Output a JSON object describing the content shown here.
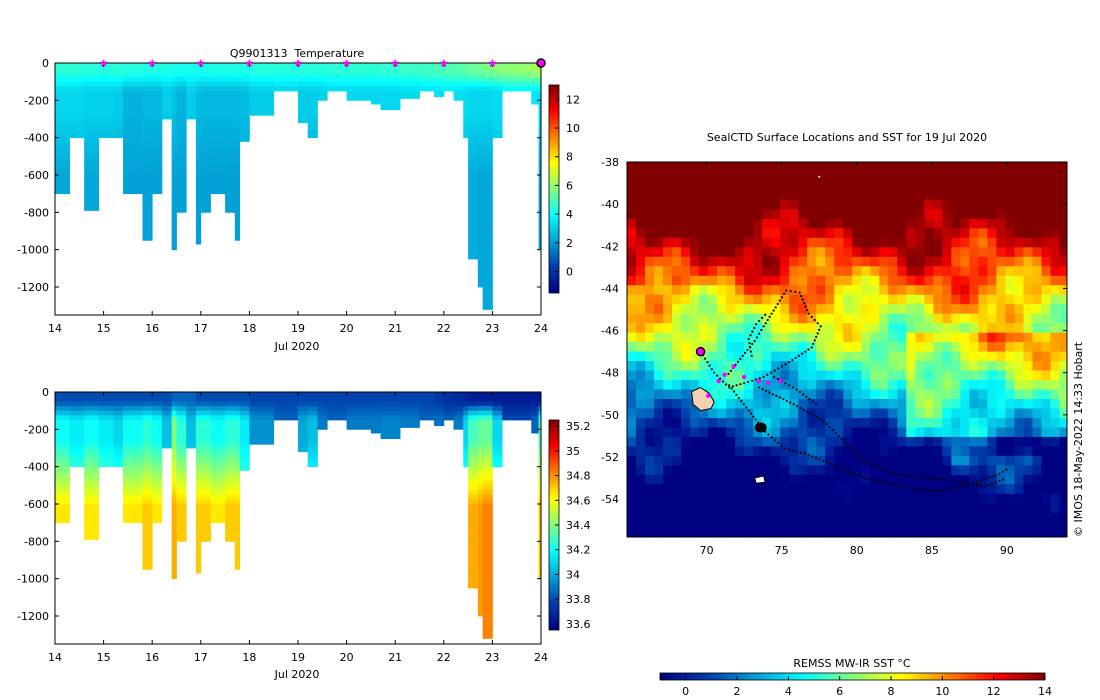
{
  "chart_data": [
    {
      "type": "heatmap",
      "id": "temperature-section",
      "title": "Q9901313  Temperature",
      "xlabel": "Jul 2020",
      "xlim": [
        14,
        24
      ],
      "x_ticks": [
        14,
        15,
        16,
        17,
        18,
        19,
        20,
        21,
        22,
        23,
        24
      ],
      "ylim": [
        -1350,
        0
      ],
      "y_ticks": [
        0,
        -200,
        -400,
        -600,
        -800,
        -1000,
        -1200
      ],
      "colorbar": {
        "range": [
          -1.5,
          13
        ],
        "ticks": [
          0,
          2,
          4,
          6,
          8,
          10,
          12
        ]
      },
      "markers": [
        15,
        16,
        17,
        18,
        19,
        20,
        21,
        22,
        23
      ],
      "end_marker": 24,
      "profiles": [
        {
          "x0": 14.0,
          "x1": 14.3,
          "depth": 700,
          "surf": 4.5,
          "mid": 3.2,
          "deep": 2.3
        },
        {
          "x0": 14.3,
          "x1": 14.6,
          "depth": 400,
          "surf": 4.5,
          "mid": 3.2,
          "deep": 2.3
        },
        {
          "x0": 14.6,
          "x1": 14.9,
          "depth": 790,
          "surf": 4.4,
          "mid": 3.1,
          "deep": 2.3
        },
        {
          "x0": 14.9,
          "x1": 15.2,
          "depth": 400,
          "surf": 4.4,
          "mid": 3.1,
          "deep": 2.3
        },
        {
          "x0": 15.2,
          "x1": 15.4,
          "depth": 400,
          "surf": 4.5,
          "mid": 3.0,
          "deep": 2.2
        },
        {
          "x0": 15.4,
          "x1": 15.8,
          "depth": 700,
          "surf": 4.4,
          "mid": 2.5,
          "deep": 2.2
        },
        {
          "x0": 15.8,
          "x1": 16.0,
          "depth": 950,
          "surf": 4.3,
          "mid": 2.6,
          "deep": 2.2
        },
        {
          "x0": 16.0,
          "x1": 16.2,
          "depth": 700,
          "surf": 4.3,
          "mid": 2.6,
          "deep": 2.2
        },
        {
          "x0": 16.2,
          "x1": 16.4,
          "depth": 300,
          "surf": 4.3,
          "mid": 3.0,
          "deep": 2.3
        },
        {
          "x0": 16.4,
          "x1": 16.5,
          "depth": 1000,
          "surf": 4.2,
          "mid": 2.8,
          "deep": 2.2
        },
        {
          "x0": 16.5,
          "x1": 16.7,
          "depth": 800,
          "surf": 4.2,
          "mid": 2.5,
          "deep": 2.2
        },
        {
          "x0": 16.7,
          "x1": 16.9,
          "depth": 300,
          "surf": 4.2,
          "mid": 3.0,
          "deep": 2.3
        },
        {
          "x0": 16.9,
          "x1": 17.0,
          "depth": 970,
          "surf": 4.2,
          "mid": 2.7,
          "deep": 2.2
        },
        {
          "x0": 17.0,
          "x1": 17.2,
          "depth": 800,
          "surf": 4.2,
          "mid": 2.6,
          "deep": 2.2
        },
        {
          "x0": 17.2,
          "x1": 17.5,
          "depth": 700,
          "surf": 4.3,
          "mid": 2.6,
          "deep": 2.2
        },
        {
          "x0": 17.5,
          "x1": 17.7,
          "depth": 800,
          "surf": 4.3,
          "mid": 2.6,
          "deep": 2.2
        },
        {
          "x0": 17.7,
          "x1": 17.8,
          "depth": 950,
          "surf": 4.3,
          "mid": 2.6,
          "deep": 2.2
        },
        {
          "x0": 17.8,
          "x1": 18.0,
          "depth": 420,
          "surf": 4.3,
          "mid": 2.7,
          "deep": 2.3
        },
        {
          "x0": 18.0,
          "x1": 18.5,
          "depth": 280,
          "surf": 4.4,
          "mid": 3.0,
          "deep": 2.4
        },
        {
          "x0": 18.5,
          "x1": 19.0,
          "depth": 150,
          "surf": 4.4,
          "mid": 3.1,
          "deep": 2.6
        },
        {
          "x0": 19.0,
          "x1": 19.2,
          "depth": 320,
          "surf": 4.4,
          "mid": 3.0,
          "deep": 2.5
        },
        {
          "x0": 19.2,
          "x1": 19.4,
          "depth": 400,
          "surf": 4.4,
          "mid": 3.0,
          "deep": 2.4
        },
        {
          "x0": 19.4,
          "x1": 19.6,
          "depth": 200,
          "surf": 4.4,
          "mid": 3.1,
          "deep": 2.6
        },
        {
          "x0": 19.6,
          "x1": 20.0,
          "depth": 150,
          "surf": 4.5,
          "mid": 3.2,
          "deep": 2.7
        },
        {
          "x0": 20.0,
          "x1": 20.5,
          "depth": 200,
          "surf": 4.5,
          "mid": 3.2,
          "deep": 2.7
        },
        {
          "x0": 20.5,
          "x1": 20.7,
          "depth": 220,
          "surf": 4.5,
          "mid": 3.2,
          "deep": 2.7
        },
        {
          "x0": 20.7,
          "x1": 21.1,
          "depth": 250,
          "surf": 4.6,
          "mid": 3.2,
          "deep": 2.7
        },
        {
          "x0": 21.1,
          "x1": 21.5,
          "depth": 190,
          "surf": 4.7,
          "mid": 3.3,
          "deep": 2.8
        },
        {
          "x0": 21.5,
          "x1": 21.8,
          "depth": 150,
          "surf": 4.8,
          "mid": 3.4,
          "deep": 2.8
        },
        {
          "x0": 21.8,
          "x1": 22.0,
          "depth": 180,
          "surf": 4.9,
          "mid": 3.4,
          "deep": 2.8
        },
        {
          "x0": 22.0,
          "x1": 22.2,
          "depth": 150,
          "surf": 5.0,
          "mid": 3.5,
          "deep": 2.8
        },
        {
          "x0": 22.2,
          "x1": 22.4,
          "depth": 200,
          "surf": 5.1,
          "mid": 3.4,
          "deep": 2.6
        },
        {
          "x0": 22.4,
          "x1": 22.5,
          "depth": 400,
          "surf": 5.2,
          "mid": 3.3,
          "deep": 2.5
        },
        {
          "x0": 22.5,
          "x1": 22.7,
          "depth": 1050,
          "surf": 5.4,
          "mid": 3.2,
          "deep": 2.4
        },
        {
          "x0": 22.7,
          "x1": 22.8,
          "depth": 1200,
          "surf": 5.5,
          "mid": 3.2,
          "deep": 2.3
        },
        {
          "x0": 22.8,
          "x1": 23.0,
          "depth": 1320,
          "surf": 5.6,
          "mid": 3.2,
          "deep": 2.3
        },
        {
          "x0": 23.0,
          "x1": 23.2,
          "depth": 400,
          "surf": 5.8,
          "mid": 3.3,
          "deep": 2.6
        },
        {
          "x0": 23.2,
          "x1": 23.5,
          "depth": 150,
          "surf": 5.9,
          "mid": 3.6,
          "deep": 2.8
        },
        {
          "x0": 23.5,
          "x1": 23.8,
          "depth": 150,
          "surf": 6.0,
          "mid": 3.6,
          "deep": 2.8
        },
        {
          "x0": 23.8,
          "x1": 23.95,
          "depth": 220,
          "surf": 6.2,
          "mid": 3.5,
          "deep": 2.7
        },
        {
          "x0": 23.95,
          "x1": 24.05,
          "depth": 1000,
          "surf": 6.5,
          "mid": 3.4,
          "deep": 2.4
        }
      ]
    },
    {
      "type": "heatmap",
      "id": "salinity-section",
      "title": "",
      "xlabel": "Jul 2020",
      "xlim": [
        14,
        24
      ],
      "x_ticks": [
        14,
        15,
        16,
        17,
        18,
        19,
        20,
        21,
        22,
        23,
        24
      ],
      "ylim": [
        -1350,
        0
      ],
      "y_ticks": [
        0,
        -200,
        -400,
        -600,
        -800,
        -1000,
        -1200
      ],
      "colorbar": {
        "range": [
          33.55,
          35.25
        ],
        "ticks": [
          33.6,
          33.8,
          34,
          34.2,
          34.4,
          34.6,
          34.8,
          35,
          35.2
        ],
        "tick_labels": [
          "33.6",
          "33.8",
          "34",
          "34.2",
          "34.4",
          "34.6",
          "34.8",
          "35",
          "35.2"
        ]
      },
      "profiles": [
        {
          "x0": 14.0,
          "x1": 14.3,
          "depth": 700,
          "surf": 33.8,
          "mid": 34.2,
          "deep": 34.65
        },
        {
          "x0": 14.3,
          "x1": 14.6,
          "depth": 400,
          "surf": 33.8,
          "mid": 34.15,
          "deep": 34.4
        },
        {
          "x0": 14.6,
          "x1": 14.9,
          "depth": 790,
          "surf": 33.8,
          "mid": 34.2,
          "deep": 34.65
        },
        {
          "x0": 14.9,
          "x1": 15.2,
          "depth": 400,
          "surf": 33.8,
          "mid": 34.15,
          "deep": 34.4
        },
        {
          "x0": 15.2,
          "x1": 15.4,
          "depth": 400,
          "surf": 33.8,
          "mid": 34.1,
          "deep": 34.4
        },
        {
          "x0": 15.4,
          "x1": 15.8,
          "depth": 700,
          "surf": 33.8,
          "mid": 34.2,
          "deep": 34.65
        },
        {
          "x0": 15.8,
          "x1": 16.0,
          "depth": 950,
          "surf": 33.8,
          "mid": 34.25,
          "deep": 34.7
        },
        {
          "x0": 16.0,
          "x1": 16.2,
          "depth": 700,
          "surf": 33.8,
          "mid": 34.2,
          "deep": 34.65
        },
        {
          "x0": 16.2,
          "x1": 16.4,
          "depth": 300,
          "surf": 33.8,
          "mid": 34.05,
          "deep": 34.25
        },
        {
          "x0": 16.4,
          "x1": 16.5,
          "depth": 1000,
          "surf": 33.85,
          "mid": 34.4,
          "deep": 34.75
        },
        {
          "x0": 16.5,
          "x1": 16.7,
          "depth": 800,
          "surf": 33.85,
          "mid": 34.25,
          "deep": 34.7
        },
        {
          "x0": 16.7,
          "x1": 16.9,
          "depth": 300,
          "surf": 33.85,
          "mid": 34.05,
          "deep": 34.25
        },
        {
          "x0": 16.9,
          "x1": 17.0,
          "depth": 970,
          "surf": 33.8,
          "mid": 34.25,
          "deep": 34.7
        },
        {
          "x0": 17.0,
          "x1": 17.2,
          "depth": 800,
          "surf": 33.8,
          "mid": 34.25,
          "deep": 34.7
        },
        {
          "x0": 17.2,
          "x1": 17.5,
          "depth": 700,
          "surf": 33.8,
          "mid": 34.2,
          "deep": 34.65
        },
        {
          "x0": 17.5,
          "x1": 17.7,
          "depth": 800,
          "surf": 33.8,
          "mid": 34.25,
          "deep": 34.7
        },
        {
          "x0": 17.7,
          "x1": 17.8,
          "depth": 950,
          "surf": 33.8,
          "mid": 34.25,
          "deep": 34.7
        },
        {
          "x0": 17.8,
          "x1": 18.0,
          "depth": 420,
          "surf": 33.8,
          "mid": 34.15,
          "deep": 34.35
        },
        {
          "x0": 18.0,
          "x1": 18.5,
          "depth": 280,
          "surf": 33.78,
          "mid": 33.95,
          "deep": 34.05
        },
        {
          "x0": 18.5,
          "x1": 19.0,
          "depth": 150,
          "surf": 33.78,
          "mid": 33.85,
          "deep": 33.9
        },
        {
          "x0": 19.0,
          "x1": 19.2,
          "depth": 320,
          "surf": 33.78,
          "mid": 34.0,
          "deep": 34.15
        },
        {
          "x0": 19.2,
          "x1": 19.4,
          "depth": 400,
          "surf": 33.78,
          "mid": 34.05,
          "deep": 34.3
        },
        {
          "x0": 19.4,
          "x1": 19.6,
          "depth": 200,
          "surf": 33.78,
          "mid": 33.9,
          "deep": 33.98
        },
        {
          "x0": 19.6,
          "x1": 20.0,
          "depth": 150,
          "surf": 33.78,
          "mid": 33.85,
          "deep": 33.92
        },
        {
          "x0": 20.0,
          "x1": 20.5,
          "depth": 200,
          "surf": 33.78,
          "mid": 33.9,
          "deep": 33.98
        },
        {
          "x0": 20.5,
          "x1": 20.7,
          "depth": 220,
          "surf": 33.78,
          "mid": 33.9,
          "deep": 33.98
        },
        {
          "x0": 20.7,
          "x1": 21.1,
          "depth": 250,
          "surf": 33.78,
          "mid": 33.92,
          "deep": 34.0
        },
        {
          "x0": 21.1,
          "x1": 21.5,
          "depth": 190,
          "surf": 33.78,
          "mid": 33.9,
          "deep": 33.98
        },
        {
          "x0": 21.5,
          "x1": 21.8,
          "depth": 150,
          "surf": 33.78,
          "mid": 33.85,
          "deep": 33.92
        },
        {
          "x0": 21.8,
          "x1": 22.0,
          "depth": 180,
          "surf": 33.75,
          "mid": 33.88,
          "deep": 33.95
        },
        {
          "x0": 22.0,
          "x1": 22.2,
          "depth": 150,
          "surf": 33.72,
          "mid": 33.85,
          "deep": 33.92
        },
        {
          "x0": 22.2,
          "x1": 22.4,
          "depth": 200,
          "surf": 33.7,
          "mid": 33.9,
          "deep": 34.0
        },
        {
          "x0": 22.4,
          "x1": 22.5,
          "depth": 400,
          "surf": 33.68,
          "mid": 34.1,
          "deep": 34.35
        },
        {
          "x0": 22.5,
          "x1": 22.7,
          "depth": 1050,
          "surf": 33.65,
          "mid": 34.3,
          "deep": 34.75
        },
        {
          "x0": 22.7,
          "x1": 22.8,
          "depth": 1200,
          "surf": 33.65,
          "mid": 34.35,
          "deep": 34.78
        },
        {
          "x0": 22.8,
          "x1": 23.0,
          "depth": 1320,
          "surf": 33.65,
          "mid": 34.35,
          "deep": 34.82
        },
        {
          "x0": 23.0,
          "x1": 23.2,
          "depth": 400,
          "surf": 33.65,
          "mid": 34.1,
          "deep": 34.35
        },
        {
          "x0": 23.2,
          "x1": 23.5,
          "depth": 150,
          "surf": 33.65,
          "mid": 33.8,
          "deep": 33.9
        },
        {
          "x0": 23.5,
          "x1": 23.8,
          "depth": 150,
          "surf": 33.65,
          "mid": 33.8,
          "deep": 33.9
        },
        {
          "x0": 23.8,
          "x1": 23.95,
          "depth": 220,
          "surf": 33.65,
          "mid": 33.85,
          "deep": 33.95
        },
        {
          "x0": 23.95,
          "x1": 24.05,
          "depth": 1000,
          "surf": 33.65,
          "mid": 34.3,
          "deep": 34.7
        }
      ]
    },
    {
      "type": "heatmap",
      "id": "sst-map",
      "title": "SealCTD Surface Locations and SST for 19 Jul 2020",
      "xlim": [
        64.7,
        94
      ],
      "ylim": [
        -55.8,
        -38
      ],
      "x_ticks": [
        70,
        75,
        80,
        85,
        90
      ],
      "y_ticks": [
        -38,
        -40,
        -42,
        -44,
        -46,
        -48,
        -50,
        -52,
        -54
      ],
      "colorbar": {
        "label": "REMSS MW-IR SST °C",
        "range": [
          -1,
          14
        ],
        "ticks": [
          0,
          2,
          4,
          6,
          8,
          10,
          12,
          14
        ]
      },
      "credit": "© IMOS 18-May-2022 14:33 Hobart",
      "latest_position": [
        69.6,
        -47.0
      ],
      "surface_positions": [
        [
          70.1,
          -49.1
        ],
        [
          70.8,
          -48.4
        ],
        [
          71.2,
          -48.1
        ],
        [
          71.8,
          -47.7
        ],
        [
          72.5,
          -48.2
        ],
        [
          73.5,
          -48.4
        ],
        [
          74.1,
          -48.5
        ],
        [
          74.9,
          -48.4
        ]
      ],
      "track_segments": [
        [
          [
            69.6,
            -47.0
          ],
          [
            70.5,
            -48.0
          ],
          [
            71.5,
            -48.7
          ],
          [
            72.5,
            -48.5
          ],
          [
            73.8,
            -48.2
          ],
          [
            75.5,
            -47.5
          ],
          [
            77.0,
            -46.8
          ],
          [
            77.6,
            -45.8
          ],
          [
            76.8,
            -45.2
          ],
          [
            76.2,
            -44.2
          ],
          [
            75.3,
            -44.1
          ],
          [
            74.6,
            -44.9
          ],
          [
            73.8,
            -45.8
          ],
          [
            73.2,
            -46.5
          ],
          [
            72.4,
            -47.2
          ],
          [
            71.3,
            -48.2
          ]
        ],
        [
          [
            71.5,
            -48.6
          ],
          [
            72.8,
            -49.8
          ],
          [
            73.9,
            -50.8
          ],
          [
            75.2,
            -51.6
          ],
          [
            76.8,
            -51.9
          ],
          [
            78.5,
            -52.4
          ],
          [
            80.5,
            -53.0
          ],
          [
            82.5,
            -53.3
          ],
          [
            84.0,
            -53.6
          ],
          [
            86.0,
            -53.6
          ],
          [
            88.0,
            -53.2
          ],
          [
            89.5,
            -52.8
          ],
          [
            90.2,
            -52.5
          ]
        ],
        [
          [
            73.5,
            -48.7
          ],
          [
            75.8,
            -49.5
          ],
          [
            77.8,
            -50.3
          ],
          [
            79.2,
            -51.3
          ],
          [
            80.5,
            -52.2
          ],
          [
            82.5,
            -52.8
          ],
          [
            84.5,
            -53.0
          ],
          [
            86.5,
            -53.1
          ],
          [
            88.5,
            -53.4
          ],
          [
            90.0,
            -53.0
          ]
        ],
        [
          [
            74.5,
            -48.2
          ],
          [
            76.0,
            -48.8
          ],
          [
            77.5,
            -49.6
          ]
        ],
        [
          [
            73.0,
            -47.2
          ],
          [
            72.8,
            -46.4
          ],
          [
            73.3,
            -45.7
          ],
          [
            74.1,
            -45.1
          ]
        ]
      ]
    }
  ]
}
